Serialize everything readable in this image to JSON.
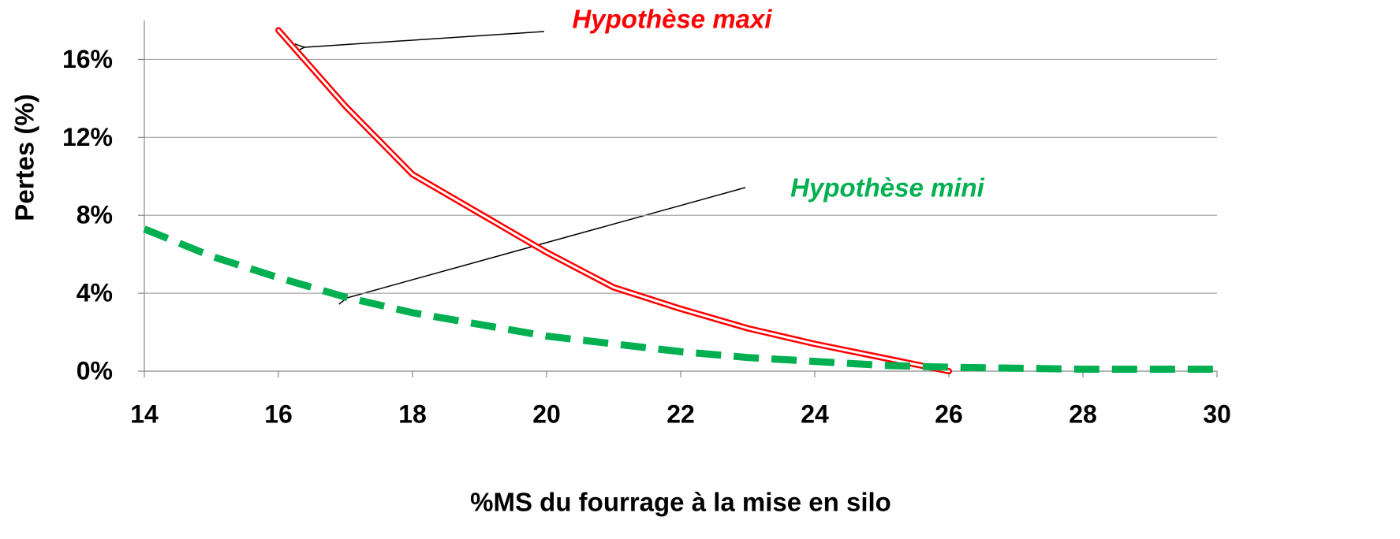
{
  "chart_data": {
    "type": "line",
    "xlabel": "%MS du fourrage à la mise en silo",
    "ylabel": "Pertes (%)",
    "xlim": [
      14,
      30
    ],
    "xticks": [
      14,
      16,
      18,
      20,
      22,
      24,
      26,
      28,
      30
    ],
    "ylim": [
      0,
      18
    ],
    "yticks": [
      {
        "value": 0,
        "label": "0%"
      },
      {
        "value": 4,
        "label": "4%"
      },
      {
        "value": 8,
        "label": "8%"
      },
      {
        "value": 12,
        "label": "12%"
      },
      {
        "value": 16,
        "label": "16%"
      }
    ],
    "grid": true,
    "series": [
      {
        "name": "Hypothèse maxi",
        "color": "#ff0000",
        "style": "double",
        "x": [
          16,
          17,
          18,
          19,
          20,
          21,
          22,
          23,
          24,
          25,
          26
        ],
        "values": [
          17.5,
          13.6,
          10.1,
          8.1,
          6.1,
          4.3,
          3.2,
          2.2,
          1.4,
          0.7,
          0.0
        ]
      },
      {
        "name": "Hypothèse mini",
        "color": "#00b050",
        "style": "dashed",
        "x": [
          14,
          15,
          16,
          17,
          18,
          19,
          20,
          21,
          22,
          23,
          24,
          25,
          26,
          27,
          28,
          29,
          30
        ],
        "values": [
          7.3,
          5.9,
          4.8,
          3.8,
          3.0,
          2.4,
          1.8,
          1.4,
          1.0,
          0.7,
          0.5,
          0.3,
          0.2,
          0.15,
          0.1,
          0.1,
          0.1
        ]
      }
    ]
  }
}
